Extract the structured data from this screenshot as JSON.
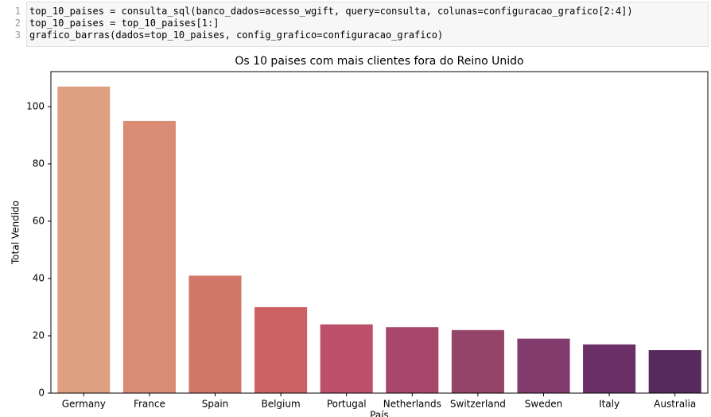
{
  "code_cell": {
    "lines": [
      {
        "number": 1,
        "text": "top_10_paises = consulta_sql(banco_dados=acesso_wgift, query=consulta, colunas=configuracao_grafico[2:4])"
      },
      {
        "number": 2,
        "text": "top_10_paises = top_10_paises[1:]"
      },
      {
        "number": 3,
        "text": "grafico_barras(dados=top_10_paises, config_grafico=configuracao_grafico)"
      }
    ]
  },
  "chart_data": {
    "type": "bar",
    "title": "Os 10 paises com mais clientes fora do Reino Unido",
    "x_label": "País",
    "y_label": "Total Vendido",
    "categories": [
      "Germany",
      "France",
      "Spain",
      "Belgium",
      "Portugal",
      "Netherlands",
      "Switzerland",
      "Sweden",
      "Italy",
      "Australia"
    ],
    "values": [
      107,
      95,
      41,
      30,
      24,
      23,
      22,
      19,
      17,
      15
    ],
    "colors": [
      "#dda081",
      "#d98b74",
      "#d27868",
      "#cb6163",
      "#bb5068",
      "#a9476b",
      "#944369",
      "#813b6c",
      "#6b2f68",
      "#572a5e"
    ],
    "ylim": [
      0,
      112.2
    ],
    "yticks": [
      0,
      20,
      40,
      60,
      80,
      100
    ],
    "grid": false
  }
}
